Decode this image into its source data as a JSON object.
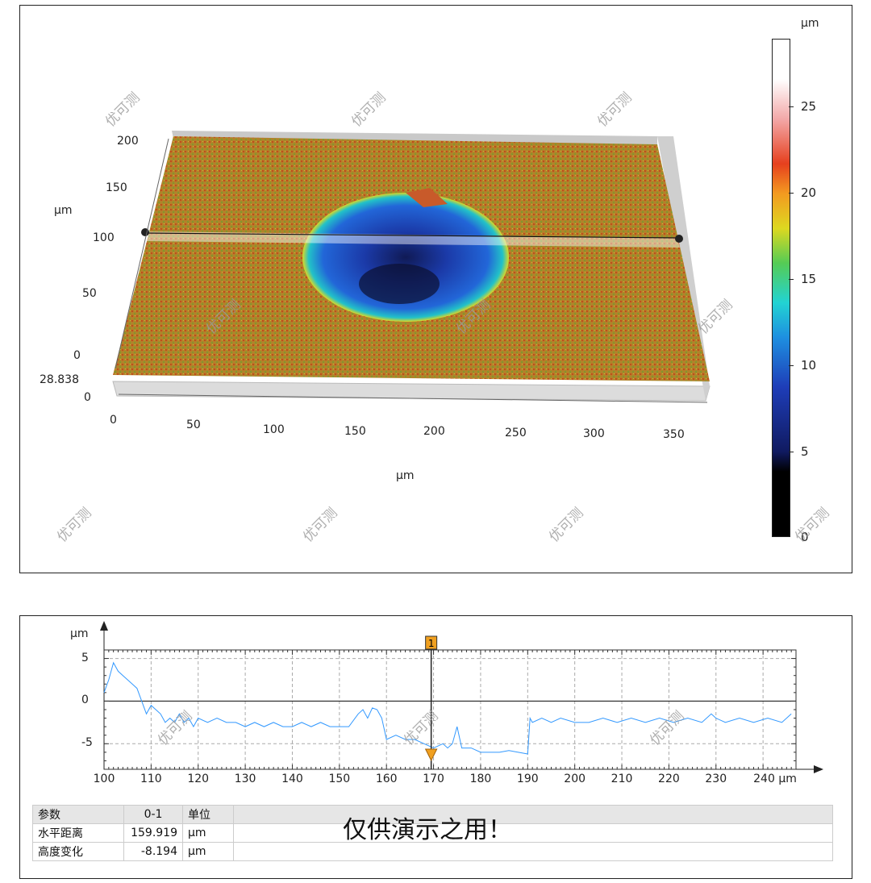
{
  "top": {
    "y_unit": "µm",
    "x_unit": "µm",
    "z_ref_value": "28.838",
    "y_ticks": [
      "200",
      "150",
      "100",
      "50",
      "0"
    ],
    "x_ticks": [
      "0",
      "50",
      "100",
      "150",
      "200",
      "250",
      "300",
      "350"
    ],
    "z_zero": "0",
    "colorbar": {
      "unit": "µm",
      "ticks": [
        "25",
        "20",
        "15",
        "10",
        "5",
        "0"
      ],
      "range": [
        0,
        28.838
      ]
    }
  },
  "profile": {
    "y_unit": "µm",
    "y_ticks": [
      "5",
      "0",
      "-5"
    ],
    "x_ticks": [
      "100",
      "110",
      "120",
      "130",
      "140",
      "150",
      "160",
      "170",
      "180",
      "190",
      "200",
      "210",
      "220",
      "230"
    ],
    "x_last_tick": "240 µm",
    "cursor_label": "1",
    "line_color": "#3399ff",
    "cursor_color": "#f0a020",
    "chart_data": {
      "type": "line",
      "xlabel": "µm",
      "ylabel": "µm",
      "xlim": [
        100,
        247
      ],
      "ylim": [
        -8,
        6
      ],
      "series": [
        {
          "x": [
            100,
            101,
            102,
            103,
            104,
            105,
            106,
            107,
            108,
            109,
            110,
            111,
            112,
            113,
            114,
            115,
            116,
            117,
            118,
            119,
            120,
            122,
            124,
            126,
            128,
            130,
            132,
            134,
            136,
            138,
            140,
            142,
            144,
            146,
            148,
            150,
            152,
            154,
            155,
            156,
            157,
            158,
            159,
            160,
            162,
            164,
            166,
            168,
            170,
            172,
            173,
            174,
            175,
            176,
            178,
            180,
            182,
            184,
            186,
            188,
            190,
            190.5,
            191,
            193,
            195,
            197,
            200,
            203,
            206,
            209,
            212,
            215,
            218,
            221,
            224,
            227,
            229,
            230,
            232,
            235,
            238,
            241,
            244,
            246
          ],
          "y": [
            1,
            2.5,
            4.5,
            3.5,
            3,
            2.5,
            2,
            1.5,
            0,
            -1.5,
            -0.5,
            -1,
            -1.5,
            -2.5,
            -2,
            -2.5,
            -1.5,
            -2.5,
            -2,
            -3,
            -2,
            -2.5,
            -2,
            -2.5,
            -2.5,
            -3,
            -2.5,
            -3,
            -2.5,
            -3,
            -3,
            -2.5,
            -3,
            -2.5,
            -3,
            -3,
            -3,
            -1.5,
            -1,
            -2,
            -0.8,
            -1,
            -2,
            -4.5,
            -4,
            -4.5,
            -4.5,
            -5,
            -5.5,
            -5,
            -5.5,
            -5,
            -3,
            -5.5,
            -5.5,
            -6,
            -6,
            -6,
            -5.8,
            -6,
            -6.2,
            -2,
            -2.5,
            -2,
            -2.5,
            -2,
            -2.5,
            -2.5,
            -2,
            -2.5,
            -2,
            -2.5,
            -2,
            -2.5,
            -2,
            -2.5,
            -1.5,
            -2,
            -2.5,
            -2,
            -2.5,
            -2,
            -2.5,
            -1.5
          ]
        }
      ]
    }
  },
  "table": {
    "headers": [
      "参数",
      "0-1",
      "单位"
    ],
    "rows": [
      [
        "水平距离",
        "159.919",
        "µm"
      ],
      [
        "高度变化",
        "-8.194",
        "µm"
      ]
    ]
  },
  "demo_text": "仅供演示之用！",
  "watermark": "优可测"
}
